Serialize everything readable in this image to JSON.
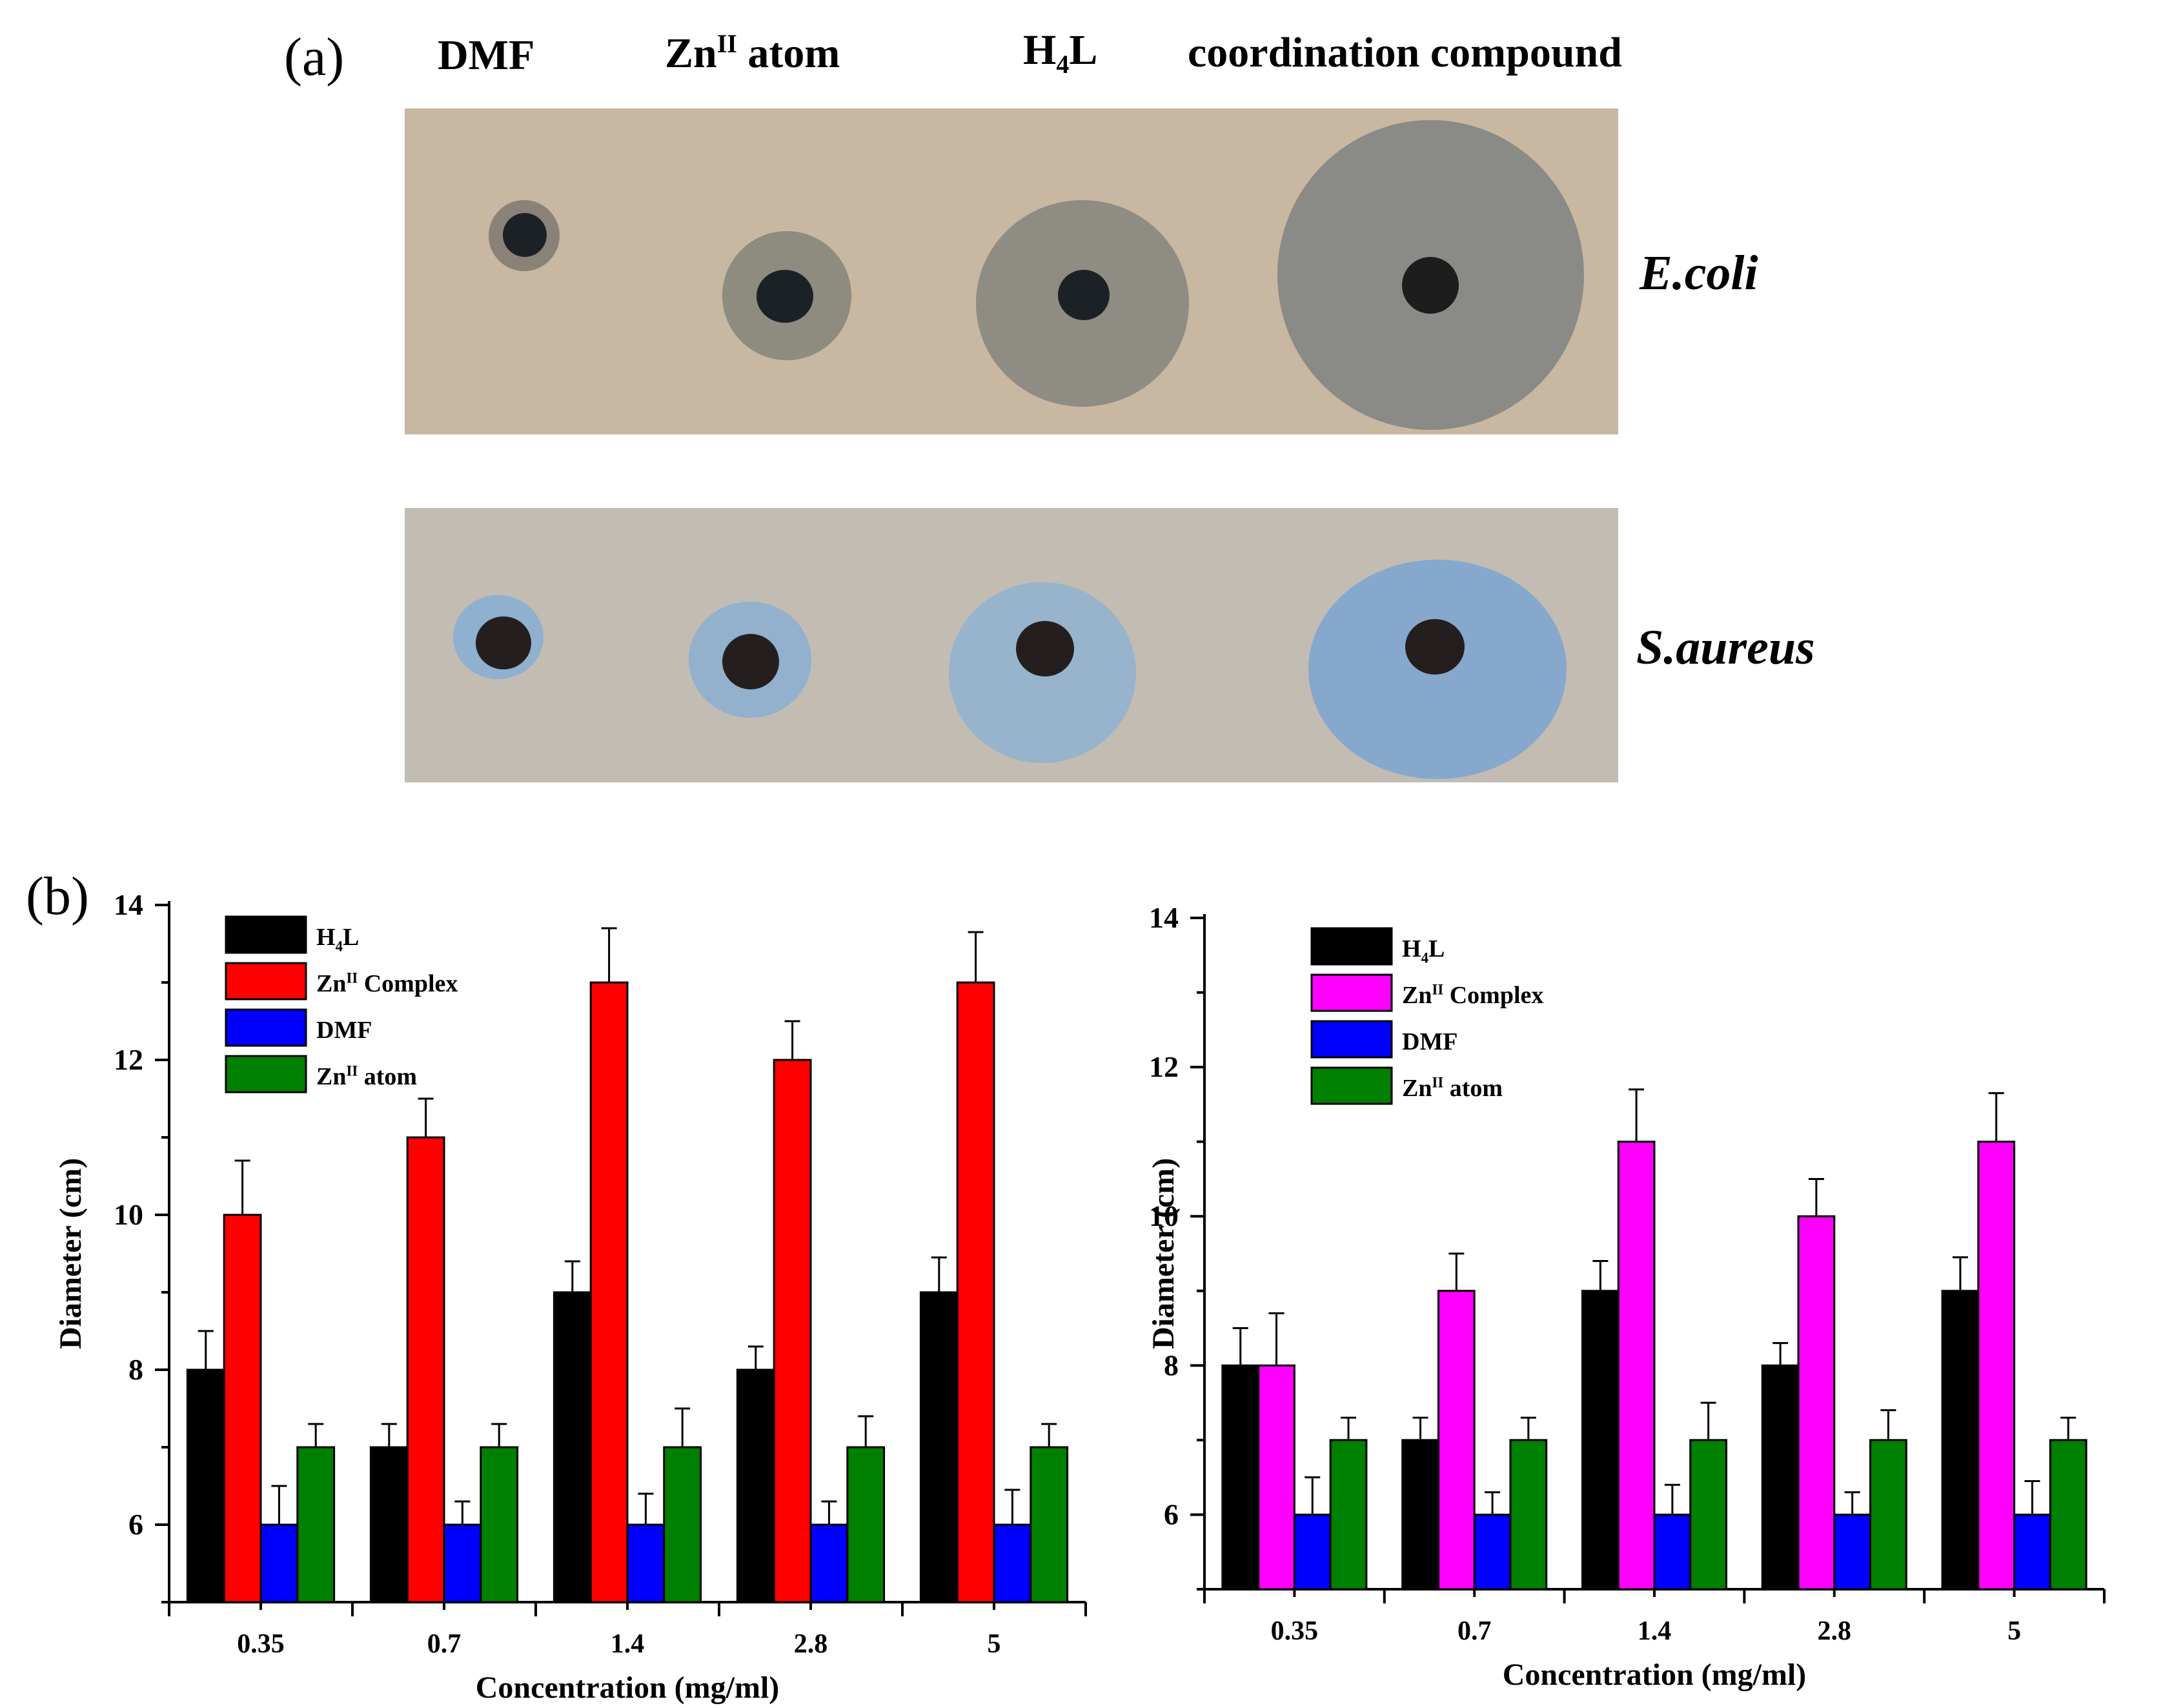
{
  "panel_a": {
    "letter": "(a)",
    "column_labels": {
      "dmf": "DMF",
      "zn_atom": {
        "main": "Zn",
        "sup": "II",
        "rest": " atom"
      },
      "h4l": {
        "main": "H",
        "sub": "4",
        "rest": "L"
      },
      "compound": "coordination compound"
    },
    "plates": [
      {
        "strain": "E.coli",
        "background": "#c8b7a1",
        "zone_color": "#8d8c84",
        "zones": [
          {
            "sample": "DMF",
            "zone_diameter_rel": 0.28
          },
          {
            "sample": "Zn atom",
            "zone_diameter_rel": 0.52
          },
          {
            "sample": "H4L",
            "zone_diameter_rel": 0.8
          },
          {
            "sample": "coordination compound",
            "zone_diameter_rel": 1.0
          }
        ]
      },
      {
        "strain": "S.aureus",
        "background": "#c2bcb3",
        "zone_color": "#7fa6cf",
        "zones": [
          {
            "sample": "DMF",
            "zone_diameter_rel": 0.36
          },
          {
            "sample": "Zn atom",
            "zone_diameter_rel": 0.52
          },
          {
            "sample": "H4L",
            "zone_diameter_rel": 0.72
          },
          {
            "sample": "coordination compound",
            "zone_diameter_rel": 1.0
          }
        ]
      }
    ]
  },
  "panel_b": {
    "letter": "(b)"
  },
  "chart_data": [
    {
      "type": "bar",
      "title": "",
      "categories": [
        "0.35",
        "0.7",
        "1.4",
        "2.8",
        "5"
      ],
      "xlabel": "Concentration (mg/ml)",
      "ylabel": "Diameter (cm)",
      "ylim": [
        5,
        14
      ],
      "yticks": [
        "6",
        "8",
        "10",
        "12",
        "14"
      ],
      "legend_position": "top-left",
      "series": [
        {
          "name": "H4L",
          "legend": {
            "main": "H",
            "sub": "4",
            "rest": "L"
          },
          "color": "#000000",
          "values": [
            8,
            7,
            9,
            8,
            9
          ],
          "errors": [
            0.5,
            0.3,
            0.4,
            0.3,
            0.45
          ]
        },
        {
          "name": "ZnII Complex",
          "legend": {
            "main": "Zn",
            "sup": "II",
            "rest": " Complex"
          },
          "color": "#ff0000",
          "values": [
            10,
            11,
            13,
            12,
            13
          ],
          "errors": [
            0.7,
            0.5,
            0.7,
            0.5,
            0.65
          ]
        },
        {
          "name": "DMF",
          "legend": {
            "main": "DMF"
          },
          "color": "#0000ff",
          "values": [
            6,
            6,
            6,
            6,
            6
          ],
          "errors": [
            0.5,
            0.3,
            0.4,
            0.3,
            0.45
          ]
        },
        {
          "name": "ZnII atom",
          "legend": {
            "main": "Zn",
            "sup": "II",
            "rest": "  atom"
          },
          "color": "#008000",
          "values": [
            7,
            7,
            7,
            7,
            7
          ],
          "errors": [
            0.3,
            0.3,
            0.5,
            0.4,
            0.3
          ]
        }
      ]
    },
    {
      "type": "bar",
      "title": "",
      "categories": [
        "0.35",
        "0.7",
        "1.4",
        "2.8",
        "5"
      ],
      "xlabel": "Concentration (mg/ml)",
      "ylabel": "Diameter (cm)",
      "ylim": [
        5,
        14
      ],
      "yticks": [
        "6",
        "8",
        "10",
        "12",
        "14"
      ],
      "legend_position": "top-left",
      "series": [
        {
          "name": "H4L",
          "legend": {
            "main": "H",
            "sub": "4",
            "rest": "L"
          },
          "color": "#000000",
          "values": [
            8,
            7,
            9,
            8,
            9
          ],
          "errors": [
            0.5,
            0.3,
            0.4,
            0.3,
            0.45
          ]
        },
        {
          "name": "ZnII Complex",
          "legend": {
            "main": "Zn",
            "sup": "II",
            "rest": " Complex"
          },
          "color": "#ff00ff",
          "values": [
            8,
            9,
            11,
            10,
            11
          ],
          "errors": [
            0.7,
            0.5,
            0.7,
            0.5,
            0.65
          ]
        },
        {
          "name": "DMF",
          "legend": {
            "main": "DMF"
          },
          "color": "#0000ff",
          "values": [
            6,
            6,
            6,
            6,
            6
          ],
          "errors": [
            0.5,
            0.3,
            0.4,
            0.3,
            0.45
          ]
        },
        {
          "name": "ZnII atom",
          "legend": {
            "main": "Zn",
            "sup": "II",
            "rest": "  atom"
          },
          "color": "#008000",
          "values": [
            7,
            7,
            7,
            7,
            7
          ],
          "errors": [
            0.3,
            0.3,
            0.5,
            0.4,
            0.3
          ]
        }
      ]
    }
  ]
}
